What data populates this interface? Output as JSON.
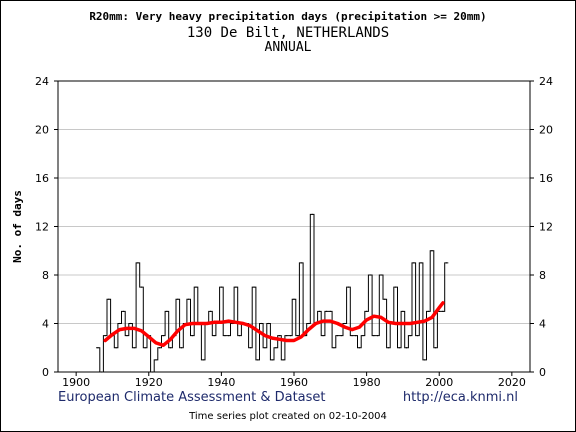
{
  "titles": {
    "line1": "R20mm: Very heavy precipitation days (precipitation >= 20mm)",
    "line2": "130 De Bilt, NETHERLANDS",
    "line3": "ANNUAL"
  },
  "footer": {
    "source": "European Climate Assessment & Dataset",
    "url": "http://eca.knmi.nl",
    "created": "Time series plot created on 02-10-2004"
  },
  "colors": {
    "series": "#000000",
    "smooth": "#ff0000",
    "grid": "#c8c8c8",
    "footer": "#1e2a6b"
  },
  "chart_data": {
    "type": "line",
    "title": "R20mm: Very heavy precipitation days (precipitation >= 20mm)",
    "subtitle": "130 De Bilt, NETHERLANDS / ANNUAL",
    "xlabel": "",
    "ylabel": "No. of days",
    "xlim": [
      1895,
      2025
    ],
    "ylim": [
      0,
      24
    ],
    "xticks": [
      1900,
      1920,
      1940,
      1960,
      1980,
      2000,
      2020
    ],
    "yticks": [
      0,
      4,
      8,
      12,
      16,
      20,
      24
    ],
    "grid": "horizontal",
    "series": [
      {
        "style": "step",
        "x": [
          1906,
          1907,
          1908,
          1909,
          1910,
          1911,
          1912,
          1913,
          1914,
          1915,
          1916,
          1917,
          1918,
          1919,
          1920,
          1921,
          1922,
          1923,
          1924,
          1925,
          1926,
          1927,
          1928,
          1929,
          1930,
          1931,
          1932,
          1933,
          1934,
          1935,
          1936,
          1937,
          1938,
          1939,
          1940,
          1941,
          1942,
          1943,
          1944,
          1945,
          1946,
          1947,
          1948,
          1949,
          1950,
          1951,
          1952,
          1953,
          1954,
          1955,
          1956,
          1957,
          1958,
          1959,
          1960,
          1961,
          1962,
          1963,
          1964,
          1965,
          1966,
          1967,
          1968,
          1969,
          1970,
          1971,
          1972,
          1973,
          1974,
          1975,
          1976,
          1977,
          1978,
          1979,
          1980,
          1981,
          1982,
          1983,
          1984,
          1985,
          1986,
          1987,
          1988,
          1989,
          1990,
          1991,
          1992,
          1993,
          1994,
          1995,
          1996,
          1997,
          1998,
          1999,
          2000,
          2001,
          2002
        ],
        "y": [
          2,
          0,
          3,
          6,
          3,
          2,
          4,
          5,
          3,
          4,
          2,
          9,
          7,
          2,
          3,
          0,
          1,
          2,
          3,
          5,
          2,
          3,
          6,
          2,
          4,
          6,
          3,
          7,
          4,
          1,
          4,
          5,
          3,
          4,
          7,
          3,
          3,
          4,
          7,
          3,
          4,
          4,
          2,
          7,
          1,
          4,
          2,
          4,
          1,
          2,
          3,
          1,
          3,
          3,
          6,
          3,
          9,
          3,
          4,
          13,
          4,
          5,
          3,
          5,
          5,
          2,
          3,
          3,
          4,
          7,
          3,
          3,
          2,
          3,
          5,
          8,
          3,
          3,
          8,
          6,
          2,
          4,
          7,
          2,
          5,
          2,
          3,
          9,
          3,
          9,
          1,
          5,
          10,
          2,
          5,
          5,
          9
        ]
      },
      {
        "style": "smoothed",
        "x": [
          1908,
          1910,
          1912,
          1914,
          1916,
          1918,
          1920,
          1922,
          1924,
          1926,
          1928,
          1930,
          1932,
          1934,
          1936,
          1938,
          1940,
          1942,
          1944,
          1946,
          1948,
          1950,
          1952,
          1954,
          1956,
          1958,
          1960,
          1962,
          1964,
          1966,
          1968,
          1970,
          1972,
          1974,
          1976,
          1978,
          1980,
          1982,
          1984,
          1986,
          1988,
          1990,
          1992,
          1994,
          1996,
          1998,
          2000,
          2001
        ],
        "y": [
          2.6,
          3.1,
          3.5,
          3.6,
          3.6,
          3.4,
          2.9,
          2.4,
          2.2,
          2.7,
          3.4,
          3.9,
          4.0,
          4.0,
          4.0,
          4.1,
          4.1,
          4.2,
          4.1,
          4.0,
          3.8,
          3.4,
          3.0,
          2.8,
          2.7,
          2.6,
          2.6,
          2.9,
          3.5,
          4.0,
          4.2,
          4.2,
          4.0,
          3.7,
          3.5,
          3.7,
          4.3,
          4.6,
          4.5,
          4.1,
          4.0,
          4.0,
          4.0,
          4.1,
          4.2,
          4.5,
          5.3,
          5.7
        ]
      }
    ]
  }
}
